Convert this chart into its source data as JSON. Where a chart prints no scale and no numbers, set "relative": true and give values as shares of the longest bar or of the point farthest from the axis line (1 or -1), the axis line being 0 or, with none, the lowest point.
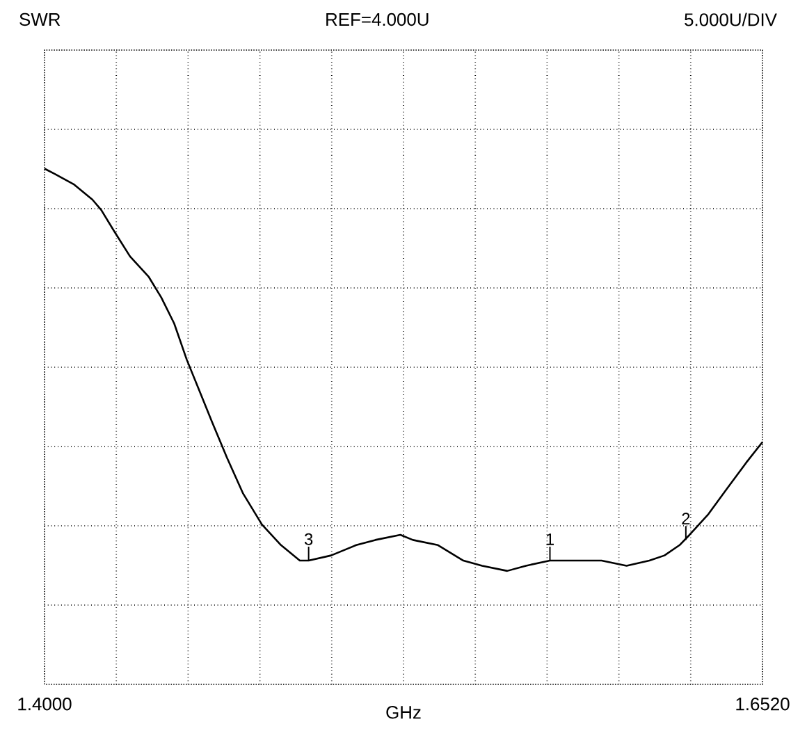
{
  "chart_data": {
    "type": "line",
    "title": "SWR",
    "relative": true,
    "xlabel": "GHz",
    "annotations": [
      "REF=4.000U",
      "5.000U/DIV",
      {
        "text": "3",
        "x": 1.4927,
        "y": 0.24
      },
      {
        "text": "1",
        "x": 1.5774,
        "y": 0.24
      },
      {
        "text": "2",
        "x": 1.6251,
        "y": 0.28
      }
    ],
    "xlim": [
      1.4,
      1.652
    ],
    "xticks": [
      {
        "value": 1.4,
        "label": "1.4000"
      },
      {
        "value": 1.652,
        "label": "1.6520"
      }
    ],
    "grid": true,
    "marker": "none",
    "line_style": "solid",
    "series": [
      {
        "color": "#000000",
        "x": [
          1.4,
          1.4035,
          1.4102,
          1.4168,
          1.4199,
          1.4243,
          1.43,
          1.4366,
          1.441,
          1.4455,
          1.4499,
          1.4543,
          1.4587,
          1.464,
          1.4697,
          1.4763,
          1.483,
          1.4896,
          1.4927,
          1.5006,
          1.5094,
          1.5161,
          1.5249,
          1.5293,
          1.5381,
          1.547,
          1.5536,
          1.5624,
          1.569,
          1.5774,
          1.5867,
          1.5955,
          1.6043,
          1.6123,
          1.6176,
          1.6229,
          1.6264,
          1.633,
          1.6396,
          1.6463,
          1.652
        ],
        "values": [
          1.0,
          0.99,
          0.97,
          0.94,
          0.92,
          0.88,
          0.83,
          0.79,
          0.75,
          0.7,
          0.63,
          0.57,
          0.51,
          0.44,
          0.37,
          0.31,
          0.27,
          0.24,
          0.24,
          0.25,
          0.27,
          0.28,
          0.29,
          0.28,
          0.27,
          0.24,
          0.23,
          0.22,
          0.23,
          0.24,
          0.24,
          0.24,
          0.23,
          0.24,
          0.25,
          0.27,
          0.29,
          0.33,
          0.38,
          0.43,
          0.47
        ]
      }
    ]
  }
}
